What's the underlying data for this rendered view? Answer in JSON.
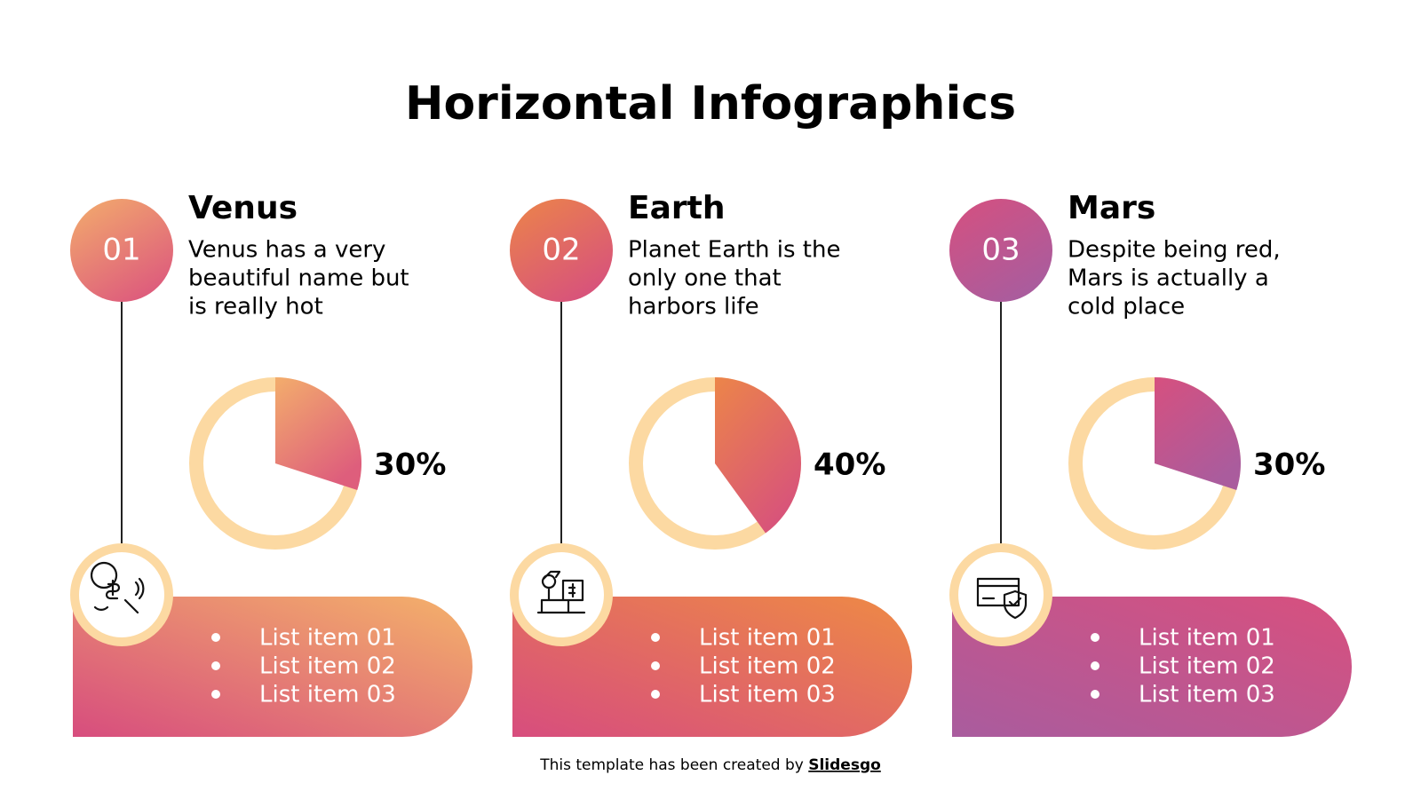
{
  "title": "Horizontal Infographics",
  "columns": [
    {
      "number": "01",
      "name": "Venus",
      "description": [
        "Venus has a very",
        "beautiful name but",
        "is really hot"
      ],
      "percent": {
        "value": 30,
        "label": "30%"
      },
      "items": [
        "List item 01",
        "List item 02",
        "List item 03"
      ]
    },
    {
      "number": "02",
      "name": "Earth",
      "description": [
        "Planet Earth is the",
        "only one that",
        "harbors life"
      ],
      "percent": {
        "value": 40,
        "label": "40%"
      },
      "items": [
        "List item 01",
        "List item 02",
        "List item 03"
      ]
    },
    {
      "number": "03",
      "name": "Mars",
      "description": [
        "Despite being red,",
        "Mars is actually a",
        "cold place"
      ],
      "percent": {
        "value": 30,
        "label": "30%"
      },
      "items": [
        "List item 01",
        "List item 02",
        "List item 03"
      ]
    }
  ],
  "footer": {
    "text": "This template has been created by",
    "link": "Slidesgo"
  }
}
